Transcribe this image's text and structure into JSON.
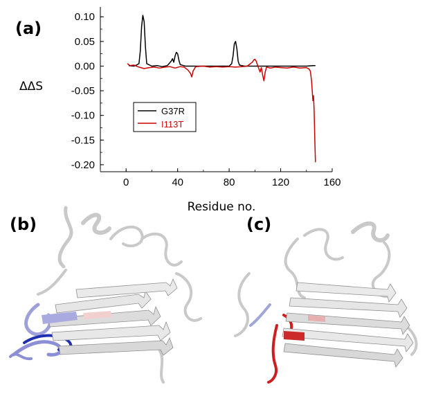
{
  "panels": {
    "a": "(a)",
    "b": "(b)",
    "c": "(c)"
  },
  "chart_data": {
    "type": "line",
    "title": "",
    "xlabel": "Residue no.",
    "ylabel": "ΔΔS",
    "xlim": [
      -20,
      160
    ],
    "ylim": [
      -0.21,
      0.12
    ],
    "xticks": [
      0,
      40,
      80,
      120,
      160
    ],
    "yticks": [
      0.1,
      0.05,
      0.0,
      -0.05,
      -0.1,
      -0.15,
      -0.2
    ],
    "xtick_labels": [
      "0",
      "40",
      "80",
      "120",
      "160"
    ],
    "ytick_labels": [
      "0.10",
      "0.05",
      "0.00",
      "-0.05",
      "-0.10",
      "-0.15",
      "-0.20"
    ],
    "grid": false,
    "legend": {
      "placement": "center-left"
    },
    "series": [
      {
        "name": "G37R",
        "color": "#000000",
        "points": [
          [
            2,
            0.001
          ],
          [
            6,
            0.0
          ],
          [
            8,
            0.002
          ],
          [
            10,
            0.005
          ],
          [
            11,
            0.03
          ],
          [
            12,
            0.08
          ],
          [
            13,
            0.103
          ],
          [
            14,
            0.09
          ],
          [
            15,
            0.04
          ],
          [
            16,
            0.005
          ],
          [
            20,
            0.0
          ],
          [
            24,
            0.001
          ],
          [
            28,
            -0.001
          ],
          [
            32,
            0.001
          ],
          [
            35,
            0.01
          ],
          [
            36,
            0.015
          ],
          [
            37,
            0.008
          ],
          [
            38,
            0.02
          ],
          [
            39,
            0.028
          ],
          [
            40,
            0.025
          ],
          [
            41,
            0.012
          ],
          [
            42,
            0.003
          ],
          [
            46,
            0.0
          ],
          [
            55,
            0.0
          ],
          [
            65,
            0.0
          ],
          [
            75,
            0.0
          ],
          [
            80,
            0.0
          ],
          [
            82,
            0.005
          ],
          [
            83,
            0.02
          ],
          [
            84,
            0.045
          ],
          [
            85,
            0.05
          ],
          [
            86,
            0.035
          ],
          [
            87,
            0.01
          ],
          [
            88,
            0.002
          ],
          [
            92,
            0.0
          ],
          [
            100,
            0.0
          ],
          [
            110,
            0.0
          ],
          [
            120,
            0.0
          ],
          [
            130,
            0.0
          ],
          [
            140,
            0.0
          ],
          [
            145,
            0.001
          ],
          [
            147,
            0.001
          ]
        ]
      },
      {
        "name": "I113T",
        "color": "#cc0000",
        "points": [
          [
            1,
            0.005
          ],
          [
            3,
            0.001
          ],
          [
            6,
            0.002
          ],
          [
            10,
            -0.002
          ],
          [
            14,
            -0.005
          ],
          [
            18,
            -0.003
          ],
          [
            22,
            -0.002
          ],
          [
            26,
            -0.004
          ],
          [
            30,
            -0.002
          ],
          [
            34,
            -0.001
          ],
          [
            38,
            -0.004
          ],
          [
            42,
            -0.001
          ],
          [
            45,
            -0.002
          ],
          [
            48,
            -0.008
          ],
          [
            50,
            -0.015
          ],
          [
            51,
            -0.022
          ],
          [
            52,
            -0.01
          ],
          [
            54,
            -0.001
          ],
          [
            60,
            0.0
          ],
          [
            65,
            -0.002
          ],
          [
            70,
            -0.001
          ],
          [
            75,
            -0.002
          ],
          [
            80,
            -0.001
          ],
          [
            85,
            -0.002
          ],
          [
            90,
            -0.001
          ],
          [
            94,
            0.0
          ],
          [
            96,
            0.004
          ],
          [
            98,
            0.008
          ],
          [
            99,
            0.012
          ],
          [
            100,
            0.014
          ],
          [
            101,
            0.01
          ],
          [
            102,
            0.002
          ],
          [
            103,
            -0.005
          ],
          [
            104,
            -0.012
          ],
          [
            105,
            -0.003
          ],
          [
            106,
            -0.018
          ],
          [
            107,
            -0.03
          ],
          [
            108,
            -0.012
          ],
          [
            109,
            -0.002
          ],
          [
            112,
            -0.004
          ],
          [
            116,
            -0.002
          ],
          [
            120,
            -0.003
          ],
          [
            125,
            -0.004
          ],
          [
            130,
            -0.002
          ],
          [
            135,
            -0.004
          ],
          [
            140,
            -0.003
          ],
          [
            142,
            -0.006
          ],
          [
            143,
            -0.01
          ],
          [
            144,
            -0.03
          ],
          [
            145,
            -0.07
          ],
          [
            145.5,
            -0.06
          ],
          [
            146,
            -0.09
          ],
          [
            146.5,
            -0.15
          ],
          [
            147,
            -0.195
          ]
        ]
      }
    ]
  },
  "structures": {
    "b": {
      "base_color": "#e3e3e3",
      "highlight_colors": [
        "#8c8ed6",
        "#1f2fb0",
        "#f0c2c2"
      ]
    },
    "c": {
      "base_color": "#e3e3e3",
      "highlight_colors": [
        "#cc1f1f",
        "#e0a0a0",
        "#9ea6da"
      ]
    }
  }
}
